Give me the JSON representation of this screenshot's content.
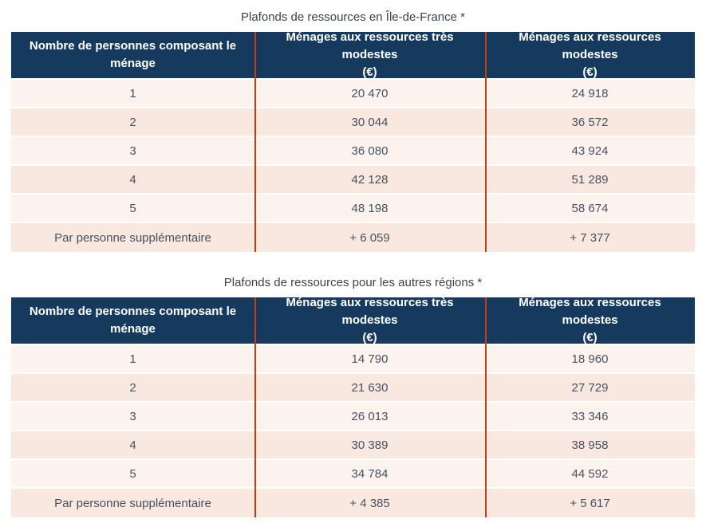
{
  "colors": {
    "header_bg": "#153a5e",
    "header_text": "#ffffff",
    "column_separator": "#c23f0c",
    "row_light": "#fdf3ee",
    "row_dark": "#f9e8e0",
    "cell_text": "#475260",
    "title_text": "#3c434b"
  },
  "tables": [
    {
      "title": "Plafonds de ressources en Île-de-France *",
      "columns": [
        "Nombre de personnes composant le\nménage",
        "Ménages aux ressources très modestes\n(€)",
        "Ménages aux ressources modestes\n(€)"
      ],
      "rows": [
        [
          "1",
          "20 470",
          "24 918"
        ],
        [
          "2",
          "30 044",
          "36 572"
        ],
        [
          "3",
          "36 080",
          "43 924"
        ],
        [
          "4",
          "42 128",
          "51 289"
        ],
        [
          "5",
          "48 198",
          "58 674"
        ],
        [
          "Par personne supplémentaire",
          "+ 6 059",
          "+ 7 377"
        ]
      ]
    },
    {
      "title": "Plafonds de ressources pour les autres régions *",
      "columns": [
        "Nombre de personnes composant le\nménage",
        "Ménages aux ressources très modestes\n(€)",
        "Ménages aux ressources modestes\n(€)"
      ],
      "rows": [
        [
          "1",
          "14 790",
          "18 960"
        ],
        [
          "2",
          "21 630",
          "27 729"
        ],
        [
          "3",
          "26 013",
          "33 346"
        ],
        [
          "4",
          "30 389",
          "38 958"
        ],
        [
          "5",
          "34 784",
          "44 592"
        ],
        [
          "Par personne supplémentaire",
          "+ 4 385",
          "+ 5 617"
        ]
      ]
    }
  ]
}
